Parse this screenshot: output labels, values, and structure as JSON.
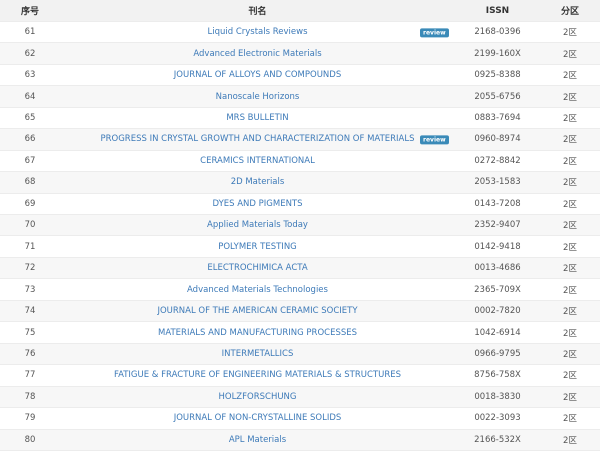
{
  "table": {
    "headers": [
      "序号",
      "刊名",
      "ISSN",
      "分区"
    ],
    "rows": [
      {
        "no": "61",
        "title": "Liquid Crystals Reviews",
        "badge": "review",
        "issn": "2168-0396",
        "zone": "2区"
      },
      {
        "no": "62",
        "title": "Advanced Electronic Materials",
        "issn": "2199-160X",
        "zone": "2区"
      },
      {
        "no": "63",
        "title": "JOURNAL OF ALLOYS AND COMPOUNDS",
        "issn": "0925-8388",
        "zone": "2区"
      },
      {
        "no": "64",
        "title": "Nanoscale Horizons",
        "issn": "2055-6756",
        "zone": "2区"
      },
      {
        "no": "65",
        "title": "MRS BULLETIN",
        "issn": "0883-7694",
        "zone": "2区"
      },
      {
        "no": "66",
        "title": "PROGRESS IN CRYSTAL GROWTH AND CHARACTERIZATION OF MATERIALS",
        "badge": "review",
        "issn": "0960-8974",
        "zone": "2区"
      },
      {
        "no": "67",
        "title": "CERAMICS INTERNATIONAL",
        "issn": "0272-8842",
        "zone": "2区"
      },
      {
        "no": "68",
        "title": "2D Materials",
        "issn": "2053-1583",
        "zone": "2区"
      },
      {
        "no": "69",
        "title": "DYES AND PIGMENTS",
        "issn": "0143-7208",
        "zone": "2区"
      },
      {
        "no": "70",
        "title": "Applied Materials Today",
        "issn": "2352-9407",
        "zone": "2区"
      },
      {
        "no": "71",
        "title": "POLYMER TESTING",
        "issn": "0142-9418",
        "zone": "2区"
      },
      {
        "no": "72",
        "title": "ELECTROCHIMICA ACTA",
        "issn": "0013-4686",
        "zone": "2区"
      },
      {
        "no": "73",
        "title": "Advanced Materials Technologies",
        "issn": "2365-709X",
        "zone": "2区"
      },
      {
        "no": "74",
        "title": "JOURNAL OF THE AMERICAN CERAMIC SOCIETY",
        "issn": "0002-7820",
        "zone": "2区"
      },
      {
        "no": "75",
        "title": "MATERIALS AND MANUFACTURING PROCESSES",
        "issn": "1042-6914",
        "zone": "2区"
      },
      {
        "no": "76",
        "title": "INTERMETALLICS",
        "issn": "0966-9795",
        "zone": "2区"
      },
      {
        "no": "77",
        "title": "FATIGUE & FRACTURE OF ENGINEERING MATERIALS & STRUCTURES",
        "issn": "8756-758X",
        "zone": "2区"
      },
      {
        "no": "78",
        "title": "HOLZFORSCHUNG",
        "issn": "0018-3830",
        "zone": "2区"
      },
      {
        "no": "79",
        "title": "JOURNAL OF NON-CRYSTALLINE SOLIDS",
        "issn": "0022-3093",
        "zone": "2区"
      },
      {
        "no": "80",
        "title": "APL Materials",
        "issn": "2166-532X",
        "zone": "2区"
      }
    ]
  }
}
